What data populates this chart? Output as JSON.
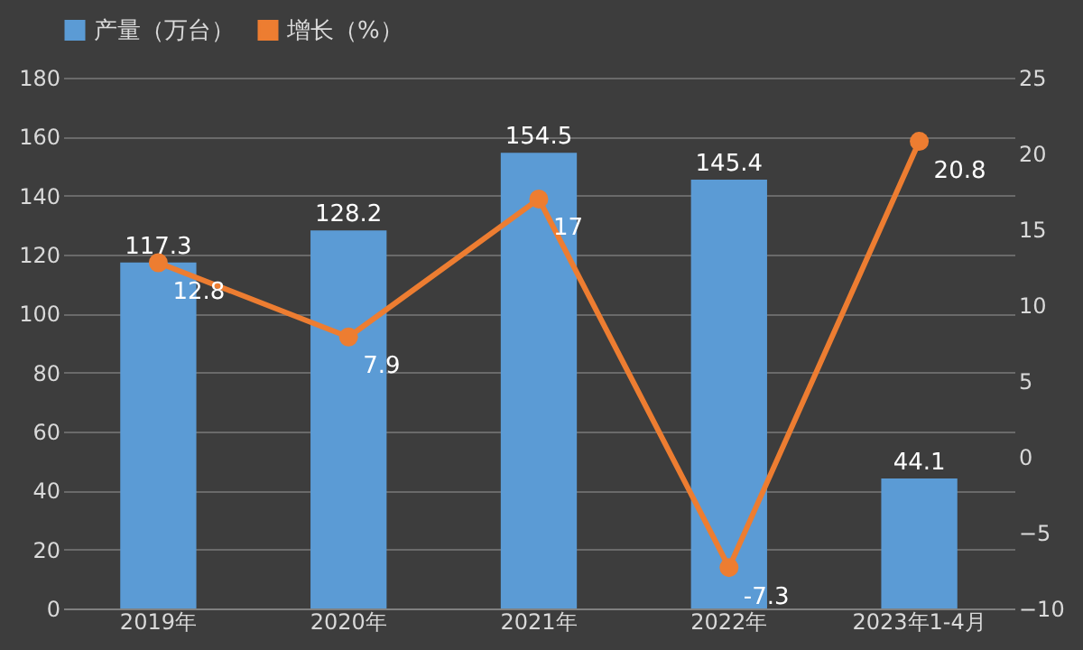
{
  "chart_data": {
    "type": "bar",
    "categories": [
      "2019年",
      "2020年",
      "2021年",
      "2022年",
      "2023年1-4月"
    ],
    "series": [
      {
        "name": "产量（万台）",
        "color": "#5b9bd5",
        "values": [
          117.3,
          128.2,
          154.5,
          145.4,
          44.1
        ]
      },
      {
        "name": "增长（%）",
        "type": "line",
        "axis": "y2",
        "color": "#ed7d31",
        "values": [
          12.8,
          7.9,
          17,
          -7.3,
          20.8
        ]
      }
    ],
    "ylim": [
      0,
      180
    ],
    "yticks": [
      0,
      20,
      40,
      60,
      80,
      100,
      120,
      140,
      160,
      180
    ],
    "y2lim": [
      -10,
      25
    ],
    "y2ticks": [
      -10,
      -5,
      0,
      5,
      10,
      15,
      20,
      25
    ],
    "grid": "y",
    "legend": "top",
    "marker": "circle",
    "line_style": "solid",
    "data_labels": true
  }
}
